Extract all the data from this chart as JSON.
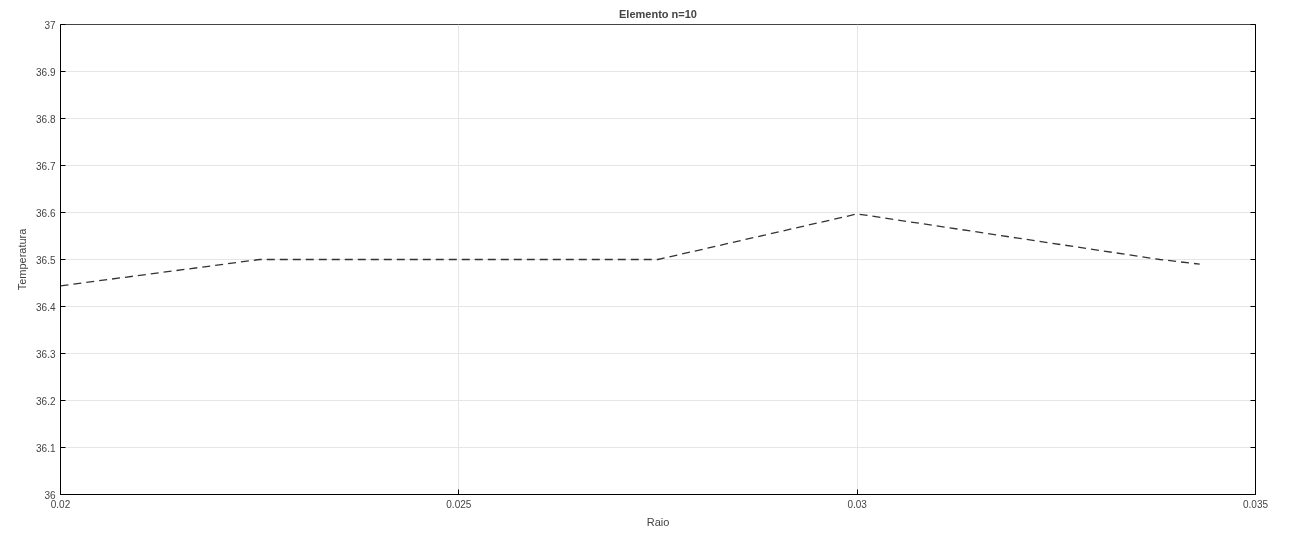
{
  "chart_data": {
    "type": "line",
    "title": "Elemento n=10",
    "xlabel": "Raio",
    "ylabel": "Temperatura",
    "x": [
      0.02,
      0.0225,
      0.0275,
      0.03,
      0.0338,
      0.0343
    ],
    "series": [
      {
        "color": "#333333",
        "values": [
          36.444,
          36.5,
          36.5,
          36.597,
          36.5,
          36.49
        ]
      }
    ],
    "xlim": [
      0.02,
      0.035
    ],
    "xticks": [
      0.02,
      0.025,
      0.03,
      0.035
    ],
    "ylim": [
      36,
      37
    ],
    "yticks": [
      36,
      36.1,
      36.2,
      36.3,
      36.4,
      36.5,
      36.6,
      36.7,
      36.8,
      36.9,
      37
    ],
    "grid": true,
    "line_style": "dashed",
    "marker": "none"
  }
}
